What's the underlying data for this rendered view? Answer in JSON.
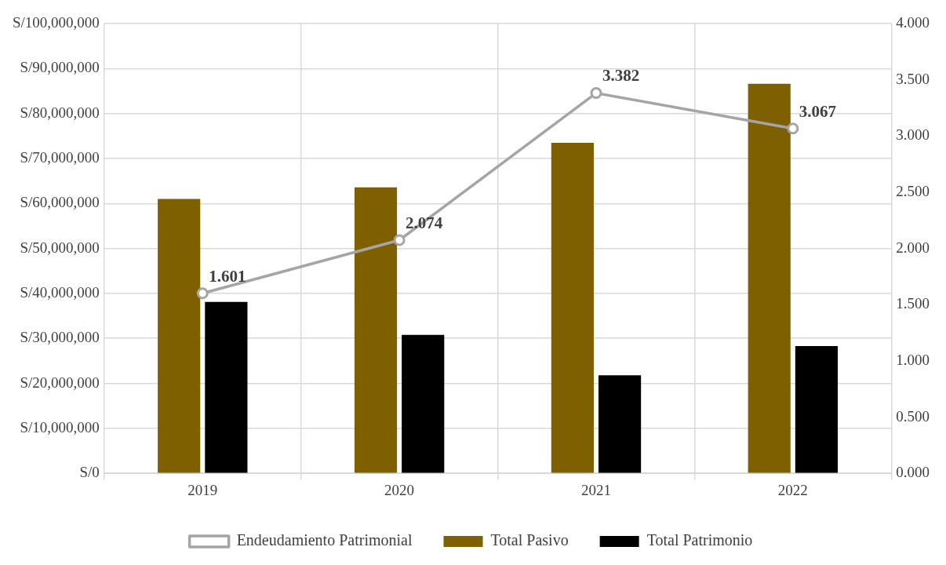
{
  "chart_data": {
    "type": "bar",
    "categories": [
      "2019",
      "2020",
      "2021",
      "2022"
    ],
    "series": [
      {
        "name": "Total Pasivo",
        "color": "#7f6000",
        "values": [
          61000000,
          63600000,
          73500000,
          86600000
        ]
      },
      {
        "name": "Total Patrimonio",
        "color": "#000000",
        "values": [
          38100000,
          30800000,
          21800000,
          28300000
        ]
      },
      {
        "name": "Endeudamiento Patrimonial",
        "type": "line",
        "axis": "y2",
        "color": "#a5a5a5",
        "marker": "circle",
        "values": [
          1.601,
          2.074,
          3.382,
          3.067
        ],
        "value_labels": [
          "1.601",
          "2.074",
          "3.382",
          "3.067"
        ]
      }
    ],
    "ylim": [
      0,
      100000000
    ],
    "yticks": [
      {
        "value": 0,
        "label": "S/0"
      },
      {
        "value": 10000000,
        "label": "S/10,000,000"
      },
      {
        "value": 20000000,
        "label": "S/20,000,000"
      },
      {
        "value": 30000000,
        "label": "S/30,000,000"
      },
      {
        "value": 40000000,
        "label": "S/40,000,000"
      },
      {
        "value": 50000000,
        "label": "S/50,000,000"
      },
      {
        "value": 60000000,
        "label": "S/60,000,000"
      },
      {
        "value": 70000000,
        "label": "S/70,000,000"
      },
      {
        "value": 80000000,
        "label": "S/80,000,000"
      },
      {
        "value": 90000000,
        "label": "S/90,000,000"
      },
      {
        "value": 100000000,
        "label": "S/100,000,000"
      }
    ],
    "y2lim": [
      0,
      4
    ],
    "y2ticks": [
      {
        "value": 0,
        "label": "0.000"
      },
      {
        "value": 0.5,
        "label": "0.500"
      },
      {
        "value": 1,
        "label": "1.000"
      },
      {
        "value": 1.5,
        "label": "1.500"
      },
      {
        "value": 2,
        "label": "2.000"
      },
      {
        "value": 2.5,
        "label": "2.500"
      },
      {
        "value": 3,
        "label": "3.000"
      },
      {
        "value": 3.5,
        "label": "3.500"
      },
      {
        "value": 4,
        "label": "4.000"
      }
    ],
    "grid": true,
    "legend": "bottom"
  }
}
